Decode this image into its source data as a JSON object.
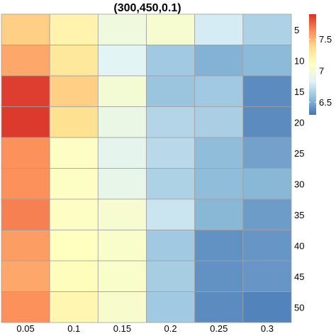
{
  "chart_data": {
    "type": "heatmap",
    "title": "(300,450,0.1)",
    "xlabel": "",
    "ylabel": "",
    "x_categories": [
      "0.05",
      "0.1",
      "0.15",
      "0.2",
      "0.25",
      "0.3"
    ],
    "y_categories": [
      "5",
      "10",
      "15",
      "20",
      "25",
      "30",
      "35",
      "40",
      "45",
      "50"
    ],
    "values": [
      [
        7.42,
        7.2,
        6.96,
        7.02,
        6.8,
        6.66
      ],
      [
        7.55,
        7.3,
        6.85,
        6.62,
        6.52,
        6.55
      ],
      [
        7.86,
        7.42,
        7.0,
        6.6,
        6.62,
        6.38
      ],
      [
        7.87,
        7.36,
        6.92,
        6.68,
        6.65,
        6.38
      ],
      [
        7.62,
        7.08,
        6.88,
        6.7,
        6.56,
        6.46
      ],
      [
        7.62,
        7.08,
        6.9,
        6.66,
        6.56,
        6.54
      ],
      [
        7.67,
        7.08,
        7.02,
        6.76,
        6.54,
        6.44
      ],
      [
        7.58,
        7.1,
        7.05,
        6.62,
        6.4,
        6.42
      ],
      [
        7.55,
        7.12,
        7.05,
        6.64,
        6.4,
        6.42
      ],
      [
        7.62,
        7.18,
        7.04,
        6.62,
        6.38,
        6.35
      ]
    ],
    "color_scale": {
      "min": 6.3,
      "max": 7.9,
      "ticks": [
        6.5,
        7,
        7.5
      ],
      "tick_labels": [
        "6.5",
        "7",
        "7.5"
      ],
      "colors": [
        "#4575b4",
        "#91bfdb",
        "#e0f3f8",
        "#ffffbf",
        "#fee090",
        "#fc8d59",
        "#d73027"
      ]
    },
    "legend_position": "top-right",
    "grid": true,
    "cell_border_color": "#a0a0a0"
  }
}
